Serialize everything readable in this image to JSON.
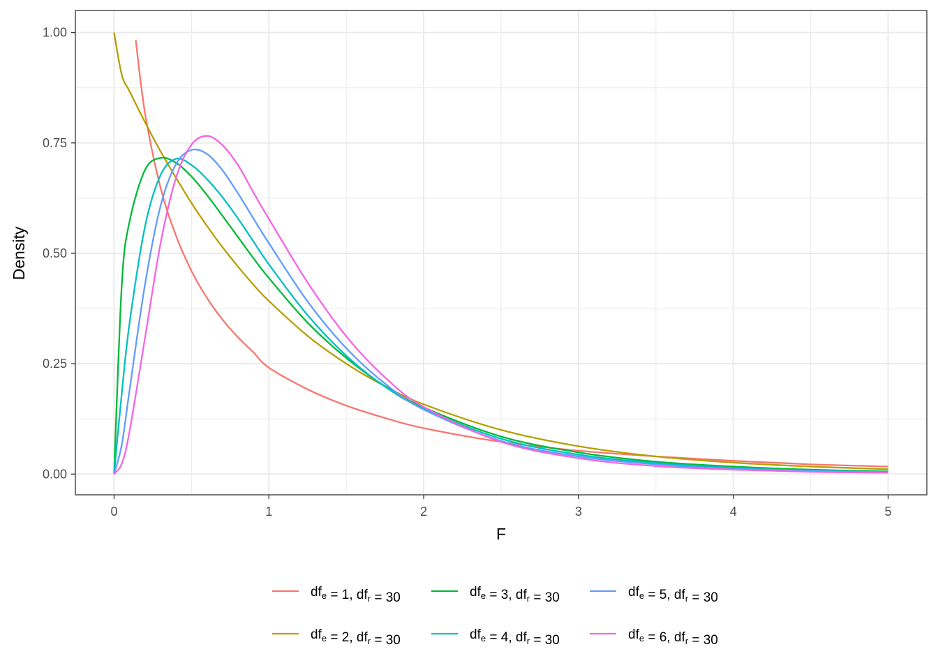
{
  "chart_data": {
    "type": "line",
    "title": "",
    "xlabel": "F",
    "ylabel": "Density",
    "xlim": [
      -0.25,
      5.25
    ],
    "ylim": [
      -0.047,
      1.05
    ],
    "x_ticks": [
      0,
      1,
      2,
      3,
      4,
      5
    ],
    "x_tick_labels": [
      "0",
      "1",
      "2",
      "3",
      "4",
      "5"
    ],
    "y_ticks": [
      0,
      0.25,
      0.5,
      0.75,
      1.0
    ],
    "y_tick_labels": [
      "0.00",
      "0.25",
      "0.50",
      "0.75",
      "1.00"
    ],
    "grid": true,
    "legend_position": "bottom",
    "x": [
      0,
      0.05,
      0.1,
      0.2,
      0.3,
      0.4,
      0.5,
      0.6,
      0.7,
      0.8,
      0.9,
      1.0,
      1.25,
      1.5,
      1.75,
      2.0,
      2.5,
      3.0,
      3.5,
      4.0,
      4.5,
      5.0
    ],
    "series": [
      {
        "name": "df_e = 1, df_r = 30",
        "label_parts": {
          "a": "df",
          "a_sub": "e",
          "b": " = 1, df",
          "b_sub": "r",
          "c": " = 30"
        },
        "color": "#F8766D",
        "x": [
          0.14,
          0.2,
          0.3,
          0.4,
          0.5,
          0.6,
          0.7,
          0.8,
          0.9,
          1.0,
          1.25,
          1.5,
          1.75,
          2.0,
          2.5,
          3.0,
          3.5,
          4.0,
          4.5,
          5.0
        ],
        "values": [
          0.983,
          0.817,
          0.649,
          0.54,
          0.46,
          0.399,
          0.35,
          0.31,
          0.276,
          0.241,
          0.192,
          0.155,
          0.127,
          0.104,
          0.073,
          0.053,
          0.04,
          0.03,
          0.022,
          0.017
        ]
      },
      {
        "name": "df_e = 2, df_r = 30",
        "label_parts": {
          "a": "df",
          "a_sub": "e",
          "b": " = 2, df",
          "b_sub": "r",
          "c": " = 30"
        },
        "color": "#B79F00",
        "values": [
          1.0,
          0.904,
          0.867,
          0.797,
          0.731,
          0.671,
          0.614,
          0.562,
          0.514,
          0.47,
          0.429,
          0.392,
          0.313,
          0.25,
          0.199,
          0.158,
          0.1,
          0.063,
          0.04,
          0.026,
          0.017,
          0.011
        ]
      },
      {
        "name": "df_e = 3, df_r = 30",
        "label_parts": {
          "a": "df",
          "a_sub": "e",
          "b": " = 3, df",
          "b_sub": "r",
          "c": " = 30"
        },
        "color": "#00BA38",
        "values": [
          0.0,
          0.43,
          0.572,
          0.689,
          0.716,
          0.705,
          0.674,
          0.632,
          0.585,
          0.537,
          0.489,
          0.444,
          0.343,
          0.263,
          0.199,
          0.151,
          0.085,
          0.049,
          0.028,
          0.017,
          0.01,
          0.006
        ]
      },
      {
        "name": "df_e = 4, df_r = 30",
        "label_parts": {
          "a": "df",
          "a_sub": "e",
          "b": " = 4, df",
          "b_sub": "r",
          "c": " = 30"
        },
        "color": "#00BFC4",
        "values": [
          0.0,
          0.184,
          0.342,
          0.561,
          0.677,
          0.714,
          0.7,
          0.668,
          0.627,
          0.579,
          0.527,
          0.475,
          0.36,
          0.268,
          0.198,
          0.148,
          0.08,
          0.044,
          0.025,
          0.014,
          0.008,
          0.005
        ]
      },
      {
        "name": "df_e = 5, df_r = 30",
        "label_parts": {
          "a": "df",
          "a_sub": "e",
          "b": " = 5, df",
          "b_sub": "r",
          "c": " = 30"
        },
        "color": "#619CFF",
        "values": [
          0.0,
          0.067,
          0.19,
          0.43,
          0.607,
          0.702,
          0.734,
          0.725,
          0.688,
          0.636,
          0.579,
          0.523,
          0.391,
          0.285,
          0.205,
          0.146,
          0.075,
          0.04,
          0.022,
          0.012,
          0.007,
          0.004
        ]
      },
      {
        "name": "df_e = 6, df_r = 30",
        "label_parts": {
          "a": "df",
          "a_sub": "e",
          "b": " = 6, df",
          "b_sub": "r",
          "c": " = 30"
        },
        "color": "#F564E3",
        "values": [
          0.0,
          0.024,
          0.097,
          0.309,
          0.522,
          0.671,
          0.746,
          0.766,
          0.745,
          0.7,
          0.638,
          0.578,
          0.434,
          0.312,
          0.219,
          0.152,
          0.073,
          0.036,
          0.018,
          0.01,
          0.005,
          0.003
        ]
      }
    ]
  }
}
